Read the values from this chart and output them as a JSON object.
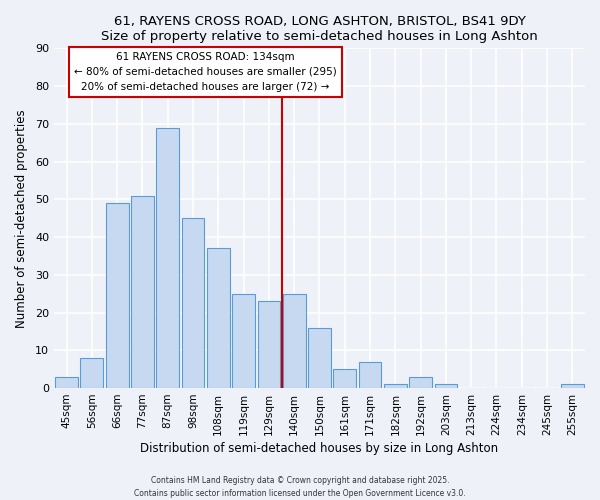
{
  "title": "61, RAYENS CROSS ROAD, LONG ASHTON, BRISTOL, BS41 9DY",
  "subtitle": "Size of property relative to semi-detached houses in Long Ashton",
  "xlabel": "Distribution of semi-detached houses by size in Long Ashton",
  "ylabel": "Number of semi-detached properties",
  "bar_labels": [
    "45sqm",
    "56sqm",
    "66sqm",
    "77sqm",
    "87sqm",
    "98sqm",
    "108sqm",
    "119sqm",
    "129sqm",
    "140sqm",
    "150sqm",
    "161sqm",
    "171sqm",
    "182sqm",
    "192sqm",
    "203sqm",
    "213sqm",
    "224sqm",
    "234sqm",
    "245sqm",
    "255sqm"
  ],
  "bar_values": [
    3,
    8,
    49,
    51,
    69,
    45,
    37,
    25,
    23,
    25,
    16,
    5,
    7,
    1,
    3,
    1,
    0,
    0,
    0,
    0,
    1
  ],
  "bar_color": "#c6d9f0",
  "bar_edge_color": "#5b9bd5",
  "vline_idx": 8.5,
  "vline_color": "#cc0000",
  "annotation_title": "61 RAYENS CROSS ROAD: 134sqm",
  "annotation_line1": "← 80% of semi-detached houses are smaller (295)",
  "annotation_line2": "20% of semi-detached houses are larger (72) →",
  "annotation_box_facecolor": "#ffffff",
  "annotation_box_edgecolor": "#cc0000",
  "ylim": [
    0,
    90
  ],
  "yticks": [
    0,
    10,
    20,
    30,
    40,
    50,
    60,
    70,
    80,
    90
  ],
  "footnote1": "Contains HM Land Registry data © Crown copyright and database right 2025.",
  "footnote2": "Contains public sector information licensed under the Open Government Licence v3.0.",
  "bg_color": "#eef2f8",
  "grid_color": "#ffffff"
}
